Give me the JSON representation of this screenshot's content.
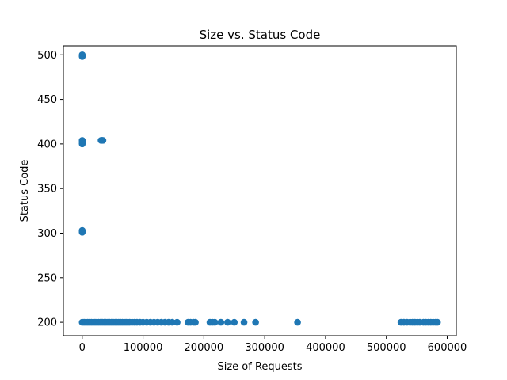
{
  "chart_data": {
    "type": "scatter",
    "title": "Size vs. Status Code",
    "xlabel": "Size of Requests",
    "ylabel": "Status Code",
    "xlim": [
      -31000,
      615000
    ],
    "ylim": [
      185,
      510
    ],
    "xticks": [
      0,
      100000,
      200000,
      300000,
      400000,
      500000,
      600000
    ],
    "xtick_labels": [
      "0",
      "100000",
      "200000",
      "300000",
      "400000",
      "500000",
      "600000"
    ],
    "yticks": [
      200,
      250,
      300,
      350,
      400,
      450,
      500
    ],
    "ytick_labels": [
      "200",
      "250",
      "300",
      "350",
      "400",
      "450",
      "500"
    ],
    "grid": false,
    "color": "#1f77b4",
    "points": [
      {
        "x": 0,
        "y": 498
      },
      {
        "x": 0,
        "y": 500
      },
      {
        "x": 300,
        "y": 499
      },
      {
        "x": 0,
        "y": 400
      },
      {
        "x": 0,
        "y": 402
      },
      {
        "x": 0,
        "y": 404
      },
      {
        "x": 300,
        "y": 403
      },
      {
        "x": 31000,
        "y": 404
      },
      {
        "x": 32500,
        "y": 404
      },
      {
        "x": 34000,
        "y": 404
      },
      {
        "x": 0,
        "y": 301
      },
      {
        "x": 0,
        "y": 303
      },
      {
        "x": 300,
        "y": 302
      },
      {
        "x": 0,
        "y": 200
      },
      {
        "x": 3000,
        "y": 200
      },
      {
        "x": 6000,
        "y": 200
      },
      {
        "x": 9000,
        "y": 200
      },
      {
        "x": 12000,
        "y": 200
      },
      {
        "x": 15000,
        "y": 200
      },
      {
        "x": 18000,
        "y": 200
      },
      {
        "x": 21000,
        "y": 200
      },
      {
        "x": 24000,
        "y": 200
      },
      {
        "x": 27000,
        "y": 200
      },
      {
        "x": 30000,
        "y": 200
      },
      {
        "x": 33000,
        "y": 200
      },
      {
        "x": 36000,
        "y": 200
      },
      {
        "x": 39000,
        "y": 200
      },
      {
        "x": 42000,
        "y": 200
      },
      {
        "x": 45000,
        "y": 200
      },
      {
        "x": 48000,
        "y": 200
      },
      {
        "x": 51000,
        "y": 200
      },
      {
        "x": 54000,
        "y": 200
      },
      {
        "x": 57000,
        "y": 200
      },
      {
        "x": 60000,
        "y": 200
      },
      {
        "x": 63000,
        "y": 200
      },
      {
        "x": 66000,
        "y": 200
      },
      {
        "x": 69000,
        "y": 200
      },
      {
        "x": 72000,
        "y": 200
      },
      {
        "x": 75000,
        "y": 200
      },
      {
        "x": 78000,
        "y": 200
      },
      {
        "x": 82000,
        "y": 200
      },
      {
        "x": 86000,
        "y": 200
      },
      {
        "x": 90000,
        "y": 200
      },
      {
        "x": 95000,
        "y": 200
      },
      {
        "x": 100000,
        "y": 200
      },
      {
        "x": 106000,
        "y": 200
      },
      {
        "x": 112000,
        "y": 200
      },
      {
        "x": 118000,
        "y": 200
      },
      {
        "x": 124000,
        "y": 200
      },
      {
        "x": 130000,
        "y": 200
      },
      {
        "x": 136000,
        "y": 200
      },
      {
        "x": 142000,
        "y": 200
      },
      {
        "x": 148000,
        "y": 200
      },
      {
        "x": 156000,
        "y": 200
      },
      {
        "x": 174000,
        "y": 200
      },
      {
        "x": 178000,
        "y": 200
      },
      {
        "x": 183000,
        "y": 200
      },
      {
        "x": 186000,
        "y": 200
      },
      {
        "x": 210000,
        "y": 200
      },
      {
        "x": 214000,
        "y": 200
      },
      {
        "x": 218000,
        "y": 200
      },
      {
        "x": 228000,
        "y": 200
      },
      {
        "x": 239000,
        "y": 200
      },
      {
        "x": 250000,
        "y": 200
      },
      {
        "x": 266000,
        "y": 200
      },
      {
        "x": 285000,
        "y": 200
      },
      {
        "x": 354000,
        "y": 200
      },
      {
        "x": 524000,
        "y": 200
      },
      {
        "x": 529000,
        "y": 200
      },
      {
        "x": 534000,
        "y": 200
      },
      {
        "x": 539000,
        "y": 200
      },
      {
        "x": 543000,
        "y": 200
      },
      {
        "x": 547000,
        "y": 200
      },
      {
        "x": 551000,
        "y": 200
      },
      {
        "x": 555000,
        "y": 200
      },
      {
        "x": 561000,
        "y": 200
      },
      {
        "x": 565000,
        "y": 200
      },
      {
        "x": 569000,
        "y": 200
      },
      {
        "x": 573000,
        "y": 200
      },
      {
        "x": 577000,
        "y": 200
      },
      {
        "x": 581000,
        "y": 200
      },
      {
        "x": 584000,
        "y": 200
      }
    ]
  }
}
